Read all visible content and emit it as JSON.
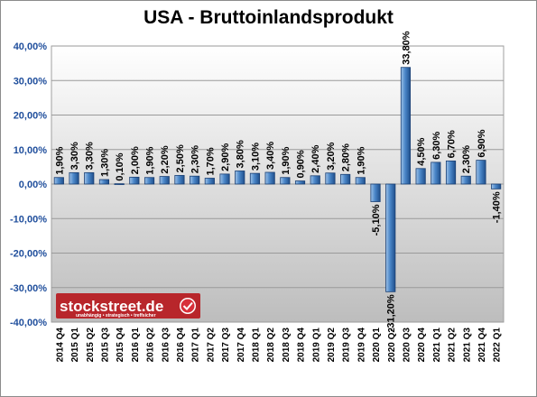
{
  "chart_data": {
    "type": "bar",
    "title": "USA - Bruttoinlandsprodukt",
    "xlabel": "",
    "ylabel": "",
    "ylim": [
      -40,
      40
    ],
    "yticks": [
      -40,
      -30,
      -20,
      -10,
      0,
      10,
      20,
      30,
      40
    ],
    "ytick_labels": [
      "-40,00%",
      "-30,00%",
      "-20,00%",
      "-10,00%",
      "0,00%",
      "10,00%",
      "20,00%",
      "30,00%",
      "40,00%"
    ],
    "grid": true,
    "categories": [
      "2014 Q4",
      "2015 Q1",
      "2015 Q2",
      "2015 Q3",
      "2015 Q4",
      "2016 Q1",
      "2016 Q2",
      "2016 Q3",
      "2016 Q4",
      "2017 Q1",
      "2017 Q2",
      "2017 Q3",
      "2017 Q4",
      "2018 Q1",
      "2018 Q2",
      "2018 Q3",
      "2018 Q4",
      "2019 Q1",
      "2019 Q2",
      "2019 Q3",
      "2019 Q4",
      "2020 Q1",
      "2020 Q2",
      "2020 Q3",
      "2020 Q4",
      "2021 Q1",
      "2021 Q2",
      "2021 Q3",
      "2021 Q4",
      "2022 Q1"
    ],
    "values": [
      1.9,
      3.3,
      3.3,
      1.3,
      0.1,
      2.0,
      1.9,
      2.2,
      2.5,
      2.3,
      1.7,
      2.9,
      3.8,
      3.1,
      3.4,
      1.9,
      0.9,
      2.4,
      3.2,
      2.8,
      1.9,
      -5.1,
      -31.2,
      33.8,
      4.5,
      6.3,
      6.7,
      2.3,
      6.9,
      -1.4
    ],
    "data_labels": [
      "1,90%",
      "3,30%",
      "3,30%",
      "1,30%",
      "0,10%",
      "2,00%",
      "1,90%",
      "2,20%",
      "2,50%",
      "2,30%",
      "1,70%",
      "2,90%",
      "3,80%",
      "3,10%",
      "3,40%",
      "1,90%",
      "0,90%",
      "2,40%",
      "3,20%",
      "2,80%",
      "1,90%",
      "-5,10%",
      "-31,20%",
      "33,80%",
      "4,50%",
      "6,30%",
      "6,70%",
      "2,30%",
      "6,90%",
      "-1,40%"
    ],
    "bar_color": "#2e6bb3"
  },
  "logo": {
    "name": "stockstreet.de",
    "tagline": "unabhängig • strategisch • treffsicher",
    "check_icon": "check-circle-icon",
    "color": "#b8262b"
  }
}
